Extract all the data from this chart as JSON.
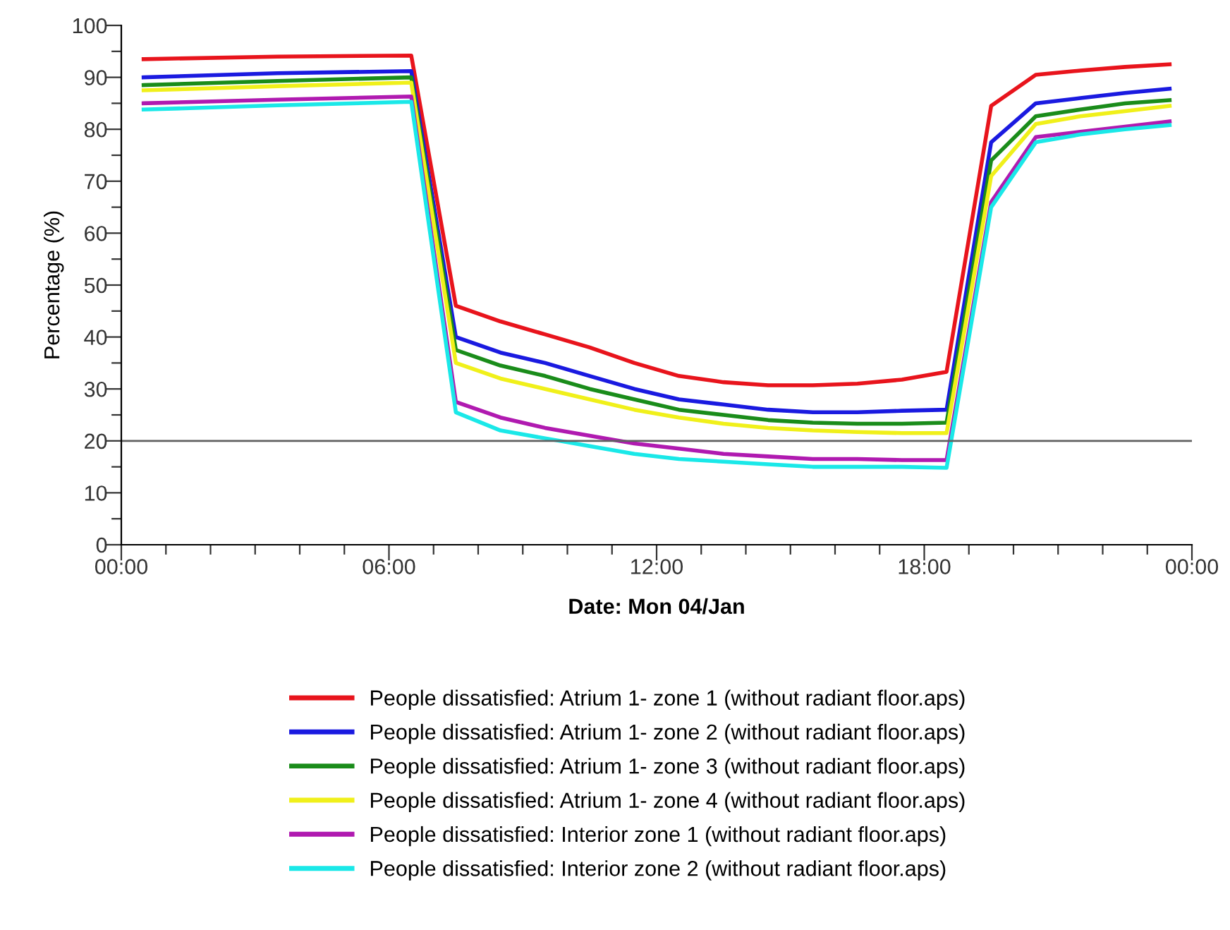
{
  "chart_data": {
    "type": "line",
    "xlabel": "Date: Mon 04/Jan",
    "ylabel": "Percentage (%)",
    "x": [
      0.5,
      3.5,
      6.5,
      7.5,
      8.5,
      9.5,
      10.5,
      11.5,
      12.5,
      13.5,
      14.5,
      15.5,
      16.5,
      17.5,
      18.5,
      19.5,
      20.5,
      21.5,
      22.5,
      23.5
    ],
    "series": [
      {
        "name": "People dissatisfied: Atrium 1- zone 1 (without radiant floor.aps)",
        "color": "#e8141c",
        "values": [
          93.5,
          94,
          94.2,
          46,
          43,
          40.5,
          38,
          35,
          32.5,
          31.3,
          30.7,
          30.7,
          31,
          31.8,
          33.3,
          84.5,
          90.5,
          91.3,
          92,
          92.5
        ]
      },
      {
        "name": "People dissatisfied: Atrium 1- zone 2 (without radiant floor.aps)",
        "color": "#1a1ae0",
        "values": [
          90,
          90.8,
          91.2,
          40,
          37,
          35,
          32.5,
          30,
          28,
          27,
          26,
          25.5,
          25.5,
          25.8,
          26,
          77.5,
          85,
          86,
          87,
          87.8
        ]
      },
      {
        "name": "People dissatisfied: Atrium 1- zone 3 (without radiant floor.aps)",
        "color": "#1a8c1a",
        "values": [
          88.5,
          89.3,
          90,
          37.5,
          34.5,
          32.5,
          30,
          28,
          26,
          25,
          24,
          23.5,
          23.3,
          23.3,
          23.5,
          74,
          82.5,
          83.8,
          85,
          85.6
        ]
      },
      {
        "name": "People dissatisfied: Atrium 1- zone 4 (without radiant floor.aps)",
        "color": "#f0f01a",
        "values": [
          87.5,
          88.3,
          89,
          35,
          32,
          30,
          28,
          26,
          24.5,
          23.3,
          22.5,
          22,
          21.7,
          21.5,
          21.5,
          71,
          81,
          82.5,
          83.5,
          84.5
        ]
      },
      {
        "name": "People dissatisfied: Interior zone 1 (without radiant floor.aps)",
        "color": "#b01ab0",
        "values": [
          85,
          85.7,
          86.3,
          27.5,
          24.5,
          22.5,
          21,
          19.5,
          18.5,
          17.5,
          17,
          16.5,
          16.5,
          16.3,
          16.3,
          66,
          78.5,
          79.5,
          80.5,
          81.5
        ]
      },
      {
        "name": "People dissatisfied: Interior zone 2 (without radiant floor.aps)",
        "color": "#1ae8e8",
        "values": [
          83.8,
          84.6,
          85.3,
          25.5,
          22,
          20.5,
          19,
          17.5,
          16.5,
          16,
          15.5,
          15,
          15,
          15,
          14.8,
          65,
          77.5,
          79,
          80,
          80.8
        ]
      }
    ],
    "xlim": [
      0,
      24
    ],
    "xticks": [
      {
        "value": 0,
        "label": "00:00"
      },
      {
        "value": 1,
        "label": null
      },
      {
        "value": 2,
        "label": null
      },
      {
        "value": 3,
        "label": null
      },
      {
        "value": 4,
        "label": null
      },
      {
        "value": 5,
        "label": null
      },
      {
        "value": 6,
        "label": "06:00"
      },
      {
        "value": 7,
        "label": null
      },
      {
        "value": 8,
        "label": null
      },
      {
        "value": 9,
        "label": null
      },
      {
        "value": 10,
        "label": null
      },
      {
        "value": 11,
        "label": null
      },
      {
        "value": 12,
        "label": "12:00"
      },
      {
        "value": 13,
        "label": null
      },
      {
        "value": 14,
        "label": null
      },
      {
        "value": 15,
        "label": null
      },
      {
        "value": 16,
        "label": null
      },
      {
        "value": 17,
        "label": null
      },
      {
        "value": 18,
        "label": "18:00"
      },
      {
        "value": 19,
        "label": null
      },
      {
        "value": 20,
        "label": null
      },
      {
        "value": 21,
        "label": null
      },
      {
        "value": 22,
        "label": null
      },
      {
        "value": 23,
        "label": null
      },
      {
        "value": 24,
        "label": "00:00"
      }
    ],
    "ylim": [
      0,
      100
    ],
    "yticks": [
      0,
      {
        "value": 5,
        "label": null
      },
      10,
      {
        "value": 15,
        "label": null
      },
      20,
      {
        "value": 25,
        "label": null
      },
      30,
      {
        "value": 35,
        "label": null
      },
      40,
      {
        "value": 45,
        "label": null
      },
      50,
      {
        "value": 55,
        "label": null
      },
      60,
      {
        "value": 65,
        "label": null
      },
      70,
      {
        "value": 75,
        "label": null
      },
      80,
      {
        "value": 85,
        "label": null
      },
      90,
      {
        "value": 95,
        "label": null
      },
      100
    ],
    "ref_lines": [
      {
        "axis": "y",
        "value": 20,
        "color": "#606060"
      }
    ],
    "grid": false,
    "legend": "bottom",
    "marker": "none",
    "line_style": "solid"
  }
}
